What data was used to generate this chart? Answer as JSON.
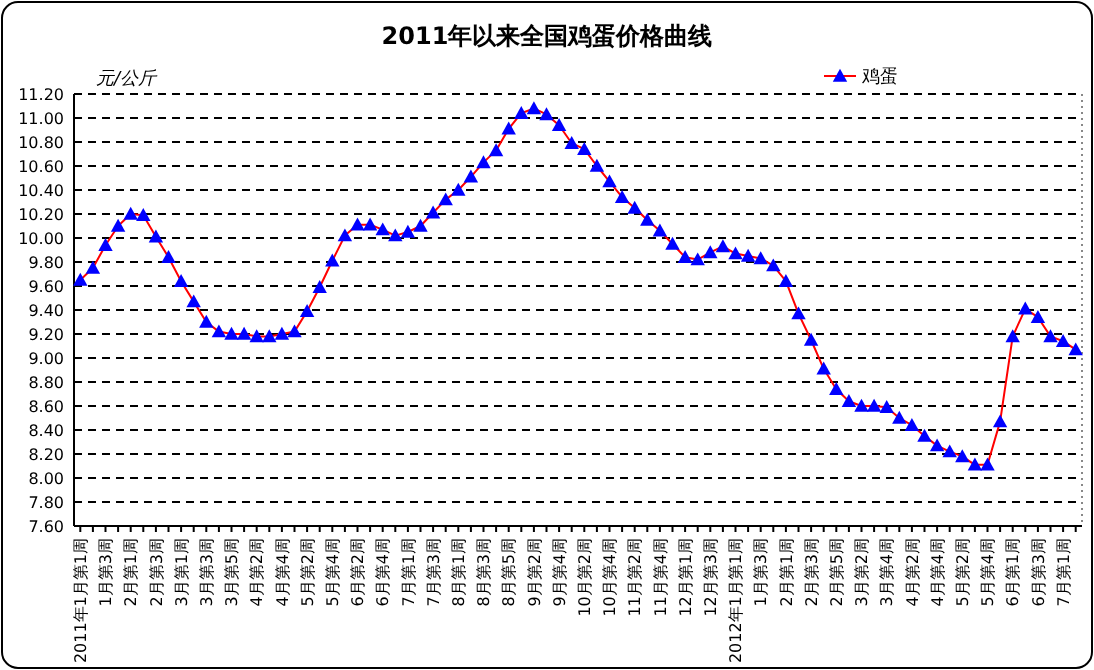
{
  "chart_data": {
    "type": "line",
    "title": "2011年以来全国鸡蛋价格曲线",
    "ylabel": "元/公斤",
    "categories": [
      "2011年1月第1周",
      null,
      "1月第3周",
      null,
      "2月第1周",
      null,
      "2月第3周",
      null,
      "3月第1周",
      null,
      "3月第3周",
      null,
      "3月第5周",
      null,
      "4月第2周",
      null,
      "4月第4周",
      null,
      "5月第2周",
      null,
      "5月第4周",
      null,
      "6月第2周",
      null,
      "6月第4周",
      null,
      "7月第1周",
      null,
      "7月第3周",
      null,
      "8月第1周",
      null,
      "8月第3周",
      null,
      "8月第5周",
      null,
      "9月第2周",
      null,
      "9月第4周",
      null,
      "10月第2周",
      null,
      "10月第4周",
      null,
      "11月第2周",
      null,
      "11月第4周",
      null,
      "12月第1周",
      null,
      "12月第3周",
      null,
      "2012年1月第1周",
      null,
      "1月第3周",
      null,
      "2月第1周",
      null,
      "2月第3周",
      null,
      "2月第5周",
      null,
      "3月第2周",
      null,
      "3月第4周",
      null,
      "4月第2周",
      null,
      "4月第4周",
      null,
      "5月第2周",
      null,
      "5月第4周",
      null,
      "6月第1周",
      null,
      "6月第3周",
      null,
      "7月第1周",
      null
    ],
    "series": [
      {
        "name": "鸡蛋",
        "color": "#0000ff",
        "values": [
          9.65,
          9.75,
          9.94,
          10.1,
          10.2,
          10.19,
          10.01,
          9.84,
          9.64,
          9.47,
          9.3,
          9.22,
          9.2,
          9.2,
          9.18,
          9.18,
          9.2,
          9.22,
          9.39,
          9.59,
          9.81,
          10.02,
          10.11,
          10.11,
          10.07,
          10.02,
          10.05,
          10.1,
          10.21,
          10.32,
          10.4,
          10.51,
          10.63,
          10.73,
          10.91,
          11.04,
          11.08,
          11.03,
          10.94,
          10.79,
          10.74,
          10.6,
          10.47,
          10.34,
          10.25,
          10.15,
          10.06,
          9.95,
          9.84,
          9.82,
          9.88,
          9.93,
          9.87,
          9.85,
          9.83,
          9.77,
          9.64,
          9.37,
          9.15,
          8.91,
          8.74,
          8.64,
          8.6,
          8.6,
          8.59,
          8.5,
          8.44,
          8.35,
          8.27,
          8.22,
          8.18,
          8.11,
          8.11,
          8.47,
          9.18,
          9.41,
          9.34,
          9.18,
          9.14,
          9.07
        ]
      }
    ],
    "ylim": [
      7.6,
      11.2
    ],
    "yticks": [
      {
        "value": 7.6,
        "label": "7.60"
      },
      {
        "value": 7.8,
        "label": "7.80"
      },
      {
        "value": 8,
        "label": "8.00"
      },
      {
        "value": 8.2,
        "label": "8.20"
      },
      {
        "value": 8.4,
        "label": "8.40"
      },
      {
        "value": 8.6,
        "label": "8.60"
      },
      {
        "value": 8.8,
        "label": "8.80"
      },
      {
        "value": 9,
        "label": "9.00"
      },
      {
        "value": 9.2,
        "label": "9.20"
      },
      {
        "value": 9.4,
        "label": "9.40"
      },
      {
        "value": 9.6,
        "label": "9.60"
      },
      {
        "value": 9.8,
        "label": "9.80"
      },
      {
        "value": 10,
        "label": "10.00"
      },
      {
        "value": 10.2,
        "label": "10.20"
      },
      {
        "value": 10.4,
        "label": "10.40"
      },
      {
        "value": 10.6,
        "label": "10.60"
      },
      {
        "value": 10.8,
        "label": "10.80"
      },
      {
        "value": 11,
        "label": "11.00"
      },
      {
        "value": 11.2,
        "label": "11.20"
      }
    ],
    "grid": "y",
    "legend": "top right",
    "marker": "triangle",
    "line_style": "solid"
  }
}
